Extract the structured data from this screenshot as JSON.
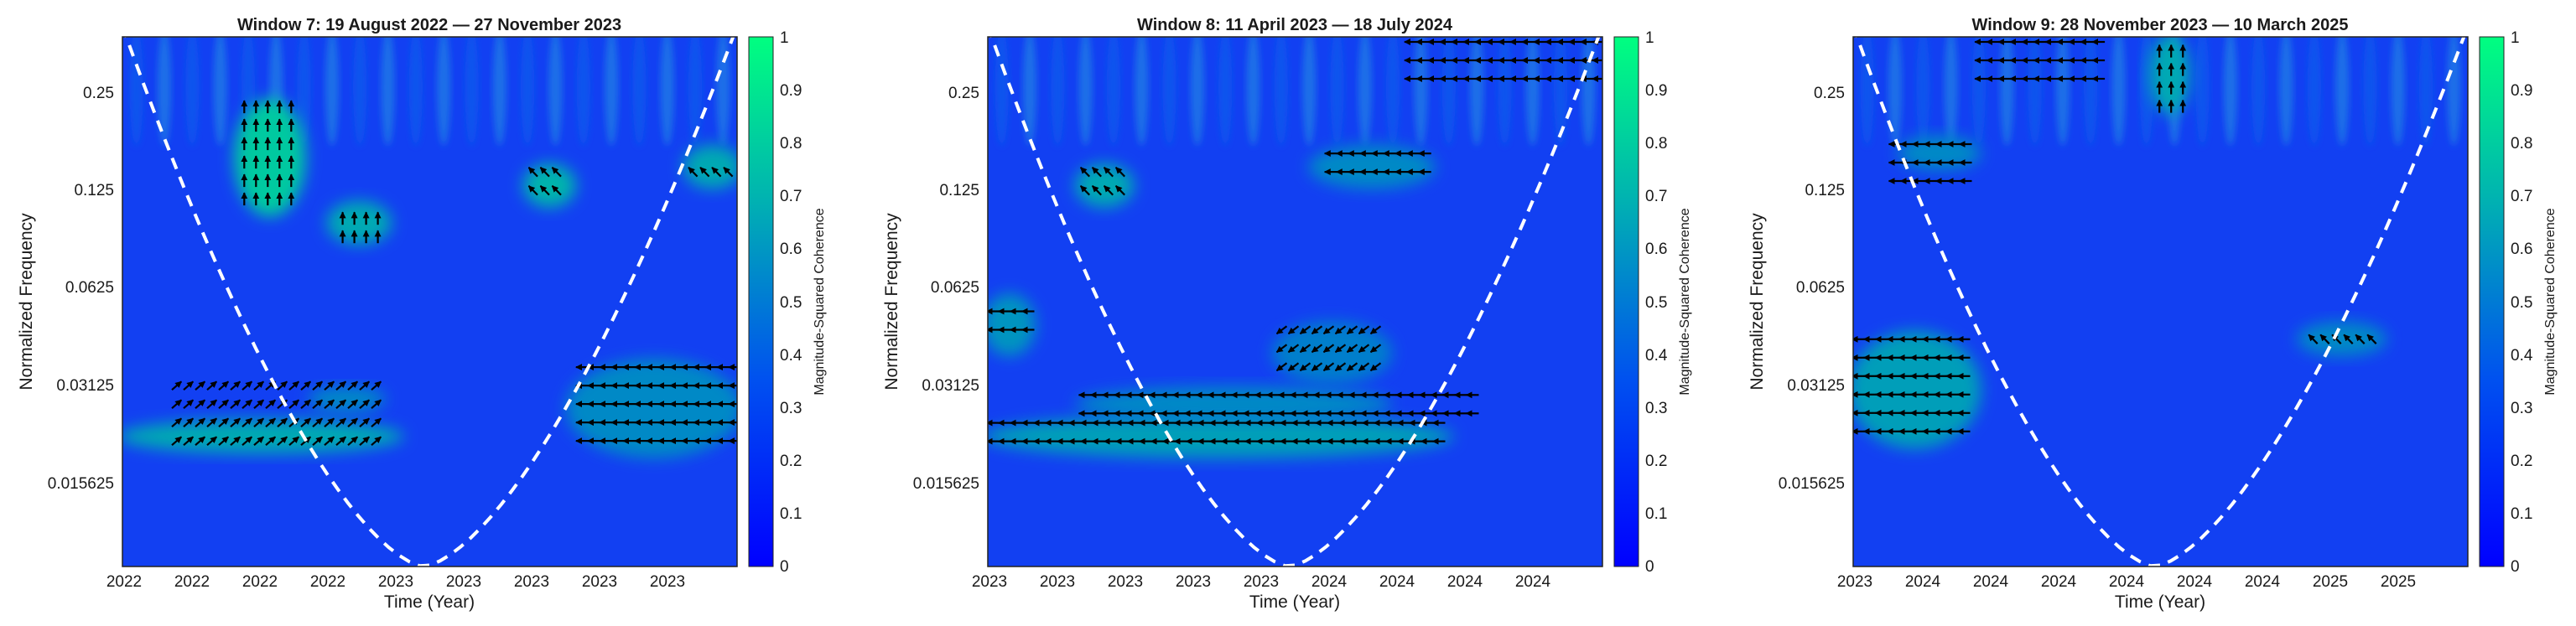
{
  "chart_data": [
    {
      "type": "heatmap",
      "title": "Window 7: 19 August 2022 — 27 November 2023",
      "xlabel": "Time (Year)",
      "ylabel": "Normalized Frequency",
      "x_tick_labels": [
        "2022",
        "2022",
        "2022",
        "2022",
        "2023",
        "2023",
        "2023",
        "2023",
        "2023"
      ],
      "y_tick_labels": [
        "0.25",
        "0.125",
        "0.0625",
        "0.03125",
        "0.015625"
      ],
      "ylim_log2": [
        -7.2,
        -1.5
      ],
      "colorbar": {
        "label": "Magnitude-Squared Coherence",
        "ticks": [
          "1",
          "0.9",
          "0.8",
          "0.7",
          "0.6",
          "0.5",
          "0.4",
          "0.3",
          "0.2",
          "0.1",
          "0"
        ],
        "colors": [
          "#0000ff",
          "#00ff80"
        ]
      },
      "cone_of_influence": {
        "apex_x_fraction": 0.49
      },
      "high_coherence_regions": [
        {
          "x": [
            0.19,
            0.29
          ],
          "log2f": [
            -3.4,
            -2.2
          ],
          "coherence": 0.75
        },
        {
          "x": [
            0.34,
            0.43
          ],
          "log2f": [
            -3.7,
            -3.3
          ],
          "coherence": 0.6
        },
        {
          "x": [
            0.0,
            0.45
          ],
          "log2f": [
            -5.95,
            -5.65
          ],
          "coherence": 0.6
        },
        {
          "x": [
            0.31,
            0.42
          ],
          "log2f": [
            -5.5,
            -5.3
          ],
          "coherence": 0.45
        },
        {
          "x": [
            0.66,
            0.73
          ],
          "log2f": [
            -3.3,
            -2.9
          ],
          "coherence": 0.65
        },
        {
          "x": [
            0.73,
            1.0
          ],
          "log2f": [
            -6.0,
            -5.0
          ],
          "coherence": 0.45
        },
        {
          "x": [
            0.92,
            1.0
          ],
          "log2f": [
            -3.1,
            -2.7
          ],
          "coherence": 0.6
        }
      ],
      "arrows": [
        {
          "x": [
            0.19,
            0.29
          ],
          "log2f": [
            -3.3,
            -2.2
          ],
          "dir": "up"
        },
        {
          "x": [
            0.35,
            0.43
          ],
          "log2f": [
            -3.7,
            -3.4
          ],
          "dir": "up"
        },
        {
          "x": [
            0.08,
            0.42
          ],
          "log2f": [
            -5.9,
            -5.2
          ],
          "dir": "up-right"
        },
        {
          "x": [
            0.74,
            1.0
          ],
          "log2f": [
            -6.0,
            -5.0
          ],
          "dir": "left"
        },
        {
          "x": [
            0.66,
            0.72
          ],
          "log2f": [
            -3.3,
            -2.9
          ],
          "dir": "up-left"
        },
        {
          "x": [
            0.92,
            1.0
          ],
          "log2f": [
            -3.0,
            -2.9
          ],
          "dir": "up-left"
        }
      ]
    },
    {
      "type": "heatmap",
      "title": "Window 8: 11 April 2023 — 18 July 2024",
      "xlabel": "Time (Year)",
      "ylabel": "Normalized Frequency",
      "x_tick_labels": [
        "2023",
        "2023",
        "2023",
        "2023",
        "2023",
        "2024",
        "2024",
        "2024",
        "2024"
      ],
      "y_tick_labels": [
        "0.25",
        "0.125",
        "0.0625",
        "0.03125",
        "0.015625"
      ],
      "ylim_log2": [
        -7.2,
        -1.5
      ],
      "colorbar": {
        "label": "Magnitude-Squared Coherence",
        "ticks": [
          "1",
          "0.9",
          "0.8",
          "0.7",
          "0.6",
          "0.5",
          "0.4",
          "0.3",
          "0.2",
          "0.1",
          "0"
        ],
        "colors": [
          "#0000ff",
          "#00ff80"
        ]
      },
      "cone_of_influence": {
        "apex_x_fraction": 0.49
      },
      "high_coherence_regions": [
        {
          "x": [
            0.0,
            0.75
          ],
          "log2f": [
            -6.0,
            -5.6
          ],
          "coherence": 0.55
        },
        {
          "x": [
            0.15,
            0.65
          ],
          "log2f": [
            -5.6,
            -5.3
          ],
          "coherence": 0.45
        },
        {
          "x": [
            0.47,
            0.65
          ],
          "log2f": [
            -5.2,
            -4.6
          ],
          "coherence": 0.4
        },
        {
          "x": [
            0.15,
            0.23
          ],
          "log2f": [
            -3.3,
            -2.9
          ],
          "coherence": 0.6
        },
        {
          "x": [
            0.0,
            0.07
          ],
          "log2f": [
            -4.9,
            -4.3
          ],
          "coherence": 0.5
        },
        {
          "x": [
            0.53,
            0.72
          ],
          "log2f": [
            -3.1,
            -2.7
          ],
          "coherence": 0.45
        }
      ],
      "arrows": [
        {
          "x": [
            0.0,
            0.75
          ],
          "log2f": [
            -6.0,
            -5.6
          ],
          "dir": "left"
        },
        {
          "x": [
            0.15,
            0.8
          ],
          "log2f": [
            -5.6,
            -5.3
          ],
          "dir": "left"
        },
        {
          "x": [
            0.47,
            0.65
          ],
          "log2f": [
            -5.2,
            -4.6
          ],
          "dir": "down-left"
        },
        {
          "x": [
            0.15,
            0.23
          ],
          "log2f": [
            -3.3,
            -2.9
          ],
          "dir": "up-left"
        },
        {
          "x": [
            0.0,
            0.07
          ],
          "log2f": [
            -4.8,
            -4.4
          ],
          "dir": "left"
        },
        {
          "x": [
            0.55,
            0.72
          ],
          "log2f": [
            -3.0,
            -2.7
          ],
          "dir": "left"
        },
        {
          "x": [
            0.68,
            1.0
          ],
          "log2f": [
            -2.0,
            -1.5
          ],
          "dir": "left"
        }
      ]
    },
    {
      "type": "heatmap",
      "title": "Window 9: 28 November 2023 — 10 March 2025",
      "xlabel": "Time (Year)",
      "ylabel": "Normalized Frequency",
      "x_tick_labels": [
        "2023",
        "2024",
        "2024",
        "2024",
        "2024",
        "2024",
        "2024",
        "2025",
        "2025"
      ],
      "y_tick_labels": [
        "0.25",
        "0.125",
        "0.0625",
        "0.03125",
        "0.015625"
      ],
      "ylim_log2": [
        -7.2,
        -1.5
      ],
      "colorbar": {
        "label": "Magnitude-Squared Coherence",
        "ticks": [
          "1",
          "0.9",
          "0.8",
          "0.7",
          "0.6",
          "0.5",
          "0.4",
          "0.3",
          "0.2",
          "0.1",
          "0"
        ],
        "colors": [
          "#0000ff",
          "#00ff80"
        ]
      },
      "cone_of_influence": {
        "apex_x_fraction": 0.49
      },
      "high_coherence_regions": [
        {
          "x": [
            0.0,
            0.2
          ],
          "log2f": [
            -5.9,
            -4.7
          ],
          "coherence": 0.55
        },
        {
          "x": [
            0.73,
            0.86
          ],
          "log2f": [
            -4.9,
            -4.6
          ],
          "coherence": 0.45
        },
        {
          "x": [
            0.08,
            0.2
          ],
          "log2f": [
            -2.9,
            -2.6
          ],
          "coherence": 0.45
        },
        {
          "x": [
            0.49,
            0.54
          ],
          "log2f": [
            -2.3,
            -1.5
          ],
          "coherence": 0.6
        }
      ],
      "arrows": [
        {
          "x": [
            0.0,
            0.2
          ],
          "log2f": [
            -5.9,
            -4.7
          ],
          "dir": "left"
        },
        {
          "x": [
            0.74,
            0.85
          ],
          "log2f": [
            -4.9,
            -4.7
          ],
          "dir": "up-left"
        },
        {
          "x": [
            0.06,
            0.2
          ],
          "log2f": [
            -3.2,
            -2.6
          ],
          "dir": "left"
        },
        {
          "x": [
            0.49,
            0.54
          ],
          "log2f": [
            -2.3,
            -1.6
          ],
          "dir": "up"
        },
        {
          "x": [
            0.2,
            0.42
          ],
          "log2f": [
            -2.0,
            -1.5
          ],
          "dir": "left"
        }
      ]
    }
  ]
}
